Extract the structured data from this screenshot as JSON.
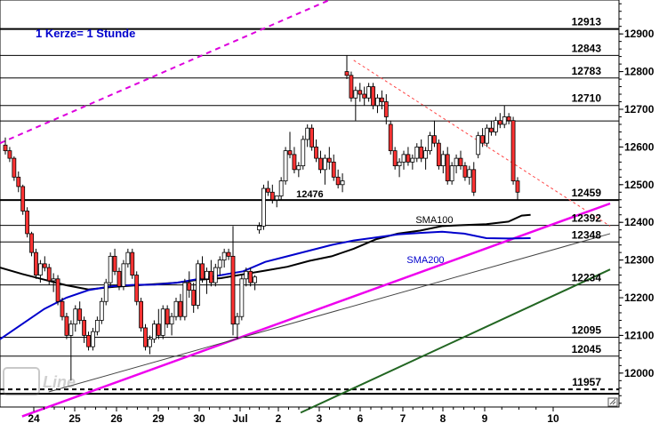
{
  "chart_data": {
    "type": "candlestick",
    "title": "1 Kerze= 1 Stunde",
    "title_color": "#0000cc",
    "ylim": [
      11910,
      12990
    ],
    "y_ticks": [
      12000,
      12100,
      12200,
      12300,
      12400,
      12500,
      12600,
      12700,
      12800,
      12900
    ],
    "x_tick_labels": [
      "24",
      "25",
      "26",
      "29",
      "30",
      "Jul",
      "2",
      "3",
      "6",
      "7",
      "8",
      "9",
      "10"
    ],
    "horizontal_levels": [
      {
        "value": 12913,
        "label": "12913",
        "style": "solid",
        "weight": "thick"
      },
      {
        "value": 12843,
        "label": "12843",
        "style": "solid",
        "weight": "thin"
      },
      {
        "value": 12783,
        "label": "12783",
        "style": "solid",
        "weight": "thin"
      },
      {
        "value": 12710,
        "label": "12710",
        "style": "solid",
        "weight": "thin"
      },
      {
        "value": 12669,
        "label": "",
        "style": "solid",
        "weight": "thin"
      },
      {
        "value": 12459,
        "label": "12459",
        "style": "solid",
        "weight": "thick"
      },
      {
        "value": 12392,
        "label": "12392",
        "style": "solid",
        "weight": "thin"
      },
      {
        "value": 12348,
        "label": "12348",
        "style": "solid",
        "weight": "thin"
      },
      {
        "value": 12234,
        "label": "12234",
        "style": "solid",
        "weight": "thin"
      },
      {
        "value": 12095,
        "label": "12095",
        "style": "solid",
        "weight": "thin"
      },
      {
        "value": 12045,
        "label": "12045",
        "style": "solid",
        "weight": "thin"
      },
      {
        "value": 11957,
        "label": "11957",
        "style": "dashed",
        "weight": "thick"
      },
      {
        "value": 11945,
        "label": "",
        "style": "solid",
        "weight": "thick"
      }
    ],
    "annotations": [
      {
        "text": "12476",
        "x": 6.7,
        "y": 12476
      },
      {
        "text": "SMA100",
        "x": 9.4,
        "y": 12407,
        "color": "#000000"
      },
      {
        "text": "SMA200",
        "x": 9.2,
        "y": 12301,
        "color": "#0000cc"
      }
    ],
    "trendlines": [
      {
        "name": "magenta-dashed-upper",
        "color": "#dd00dd",
        "style": "dashed",
        "points": [
          [
            0.0,
            12610
          ],
          [
            10.0,
            13120
          ]
        ]
      },
      {
        "name": "red-dashed-resistance",
        "color": "#ff4444",
        "style": "dashed",
        "points": [
          [
            8.0,
            12830
          ],
          [
            13.8,
            12390
          ]
        ]
      },
      {
        "name": "magenta-support",
        "color": "#ee00ee",
        "style": "solid",
        "points": [
          [
            0.5,
            11885
          ],
          [
            13.8,
            12450
          ]
        ]
      },
      {
        "name": "thin-channel",
        "color": "#444444",
        "style": "solid",
        "points": [
          [
            1.1,
            11950
          ],
          [
            13.8,
            12370
          ]
        ]
      },
      {
        "name": "green-support",
        "color": "#226622",
        "style": "solid",
        "points": [
          [
            6.8,
            11895
          ],
          [
            13.8,
            12275
          ]
        ]
      }
    ],
    "series": [
      {
        "name": "SMA100",
        "color": "#000000",
        "kind": "line",
        "points": [
          [
            0.0,
            12280
          ],
          [
            0.5,
            12263
          ],
          [
            1.0,
            12248
          ],
          [
            1.5,
            12233
          ],
          [
            2.0,
            12222
          ],
          [
            2.5,
            12228
          ],
          [
            3.0,
            12232
          ],
          [
            3.5,
            12236
          ],
          [
            4.0,
            12240
          ],
          [
            4.5,
            12248
          ],
          [
            5.0,
            12252
          ],
          [
            5.5,
            12262
          ],
          [
            6.0,
            12272
          ],
          [
            6.5,
            12282
          ],
          [
            7.0,
            12298
          ],
          [
            7.5,
            12310
          ],
          [
            8.0,
            12330
          ],
          [
            8.5,
            12355
          ],
          [
            9.0,
            12370
          ],
          [
            9.5,
            12378
          ],
          [
            10.0,
            12390
          ],
          [
            10.5,
            12393
          ],
          [
            11.0,
            12395
          ],
          [
            11.5,
            12402
          ],
          [
            11.8,
            12418
          ],
          [
            12.0,
            12420
          ]
        ]
      },
      {
        "name": "SMA200",
        "color": "#0000cc",
        "kind": "line",
        "points": [
          [
            0.0,
            12090
          ],
          [
            0.5,
            12130
          ],
          [
            1.0,
            12170
          ],
          [
            1.5,
            12200
          ],
          [
            2.0,
            12220
          ],
          [
            2.5,
            12230
          ],
          [
            3.0,
            12234
          ],
          [
            3.5,
            12235
          ],
          [
            4.0,
            12240
          ],
          [
            4.5,
            12250
          ],
          [
            5.0,
            12260
          ],
          [
            5.5,
            12270
          ],
          [
            6.0,
            12295
          ],
          [
            6.5,
            12310
          ],
          [
            7.0,
            12325
          ],
          [
            7.5,
            12340
          ],
          [
            8.0,
            12352
          ],
          [
            8.5,
            12360
          ],
          [
            9.0,
            12368
          ],
          [
            9.5,
            12372
          ],
          [
            10.0,
            12375
          ],
          [
            10.5,
            12370
          ],
          [
            11.0,
            12358
          ],
          [
            11.5,
            12357
          ],
          [
            12.0,
            12358
          ]
        ]
      },
      {
        "name": "price",
        "kind": "candles",
        "bull_color": "#ffffff",
        "bear_color": "#ff3333",
        "ohlc": [
          [
            12605,
            12625,
            12580,
            12590
          ],
          [
            12590,
            12600,
            12560,
            12570
          ],
          [
            12570,
            12575,
            12510,
            12520
          ],
          [
            12520,
            12535,
            12480,
            12495
          ],
          [
            12495,
            12500,
            12420,
            12430
          ],
          [
            12430,
            12440,
            12360,
            12370
          ],
          [
            12370,
            12375,
            12310,
            12320
          ],
          [
            12320,
            12330,
            12250,
            12260
          ],
          [
            12260,
            12300,
            12240,
            12290
          ],
          [
            12290,
            12310,
            12270,
            12280
          ],
          [
            12280,
            12290,
            12235,
            12245
          ],
          [
            12245,
            12265,
            12215,
            12250
          ],
          [
            12250,
            12260,
            12180,
            12190
          ],
          [
            12190,
            12200,
            12140,
            12150
          ],
          [
            12150,
            12160,
            12090,
            12100
          ],
          [
            12100,
            12140,
            11980,
            12130
          ],
          [
            12130,
            12180,
            12110,
            12170
          ],
          [
            12170,
            12190,
            12130,
            12140
          ],
          [
            12140,
            12150,
            12080,
            12100
          ],
          [
            12100,
            12110,
            12060,
            12070
          ],
          [
            12070,
            12120,
            12060,
            12110
          ],
          [
            12110,
            12150,
            12100,
            12140
          ],
          [
            12140,
            12200,
            12130,
            12190
          ],
          [
            12190,
            12250,
            12180,
            12240
          ],
          [
            12240,
            12320,
            12230,
            12310
          ],
          [
            12310,
            12330,
            12260,
            12270
          ],
          [
            12270,
            12280,
            12220,
            12230
          ],
          [
            12230,
            12300,
            12220,
            12290
          ],
          [
            12290,
            12330,
            12280,
            12320
          ],
          [
            12320,
            12330,
            12250,
            12260
          ],
          [
            12260,
            12270,
            12180,
            12190
          ],
          [
            12190,
            12200,
            12110,
            12120
          ],
          [
            12120,
            12130,
            12060,
            12070
          ],
          [
            12070,
            12100,
            12050,
            12090
          ],
          [
            12090,
            12140,
            12080,
            12130
          ],
          [
            12130,
            12170,
            12090,
            12100
          ],
          [
            12100,
            12180,
            12090,
            12170
          ],
          [
            12170,
            12180,
            12120,
            12130
          ],
          [
            12130,
            12160,
            12100,
            12150
          ],
          [
            12150,
            12200,
            12140,
            12190
          ],
          [
            12190,
            12210,
            12140,
            12150
          ],
          [
            12150,
            12250,
            12140,
            12240
          ],
          [
            12240,
            12270,
            12200,
            12220
          ],
          [
            12220,
            12240,
            12160,
            12180
          ],
          [
            12180,
            12300,
            12170,
            12290
          ],
          [
            12290,
            12310,
            12240,
            12250
          ],
          [
            12250,
            12280,
            12210,
            12270
          ],
          [
            12270,
            12300,
            12230,
            12240
          ],
          [
            12240,
            12290,
            12230,
            12280
          ],
          [
            12280,
            12310,
            12260,
            12300
          ],
          [
            12300,
            12330,
            12280,
            12320
          ],
          [
            12320,
            12330,
            12300,
            12310
          ],
          [
            12310,
            12390,
            12100,
            12130
          ],
          [
            12130,
            12160,
            12090,
            12150
          ],
          [
            12150,
            12260,
            12140,
            12250
          ],
          [
            12250,
            12280,
            12230,
            12270
          ],
          [
            12270,
            12280,
            12230,
            12240
          ],
          [
            12240,
            12260,
            12220,
            12255
          ],
          [
            12380,
            12400,
            12370,
            12390
          ],
          [
            12390,
            12500,
            12380,
            12490
          ],
          [
            12490,
            12510,
            12470,
            12480
          ],
          [
            12480,
            12500,
            12450,
            12460
          ],
          [
            12460,
            12470,
            12440,
            12470
          ],
          [
            12470,
            12520,
            12460,
            12510
          ],
          [
            12510,
            12600,
            12500,
            12590
          ],
          [
            12590,
            12640,
            12570,
            12580
          ],
          [
            12580,
            12600,
            12530,
            12540
          ],
          [
            12540,
            12560,
            12520,
            12550
          ],
          [
            12550,
            12630,
            12540,
            12620
          ],
          [
            12620,
            12660,
            12600,
            12650
          ],
          [
            12650,
            12660,
            12590,
            12600
          ],
          [
            12600,
            12620,
            12560,
            12570
          ],
          [
            12570,
            12590,
            12530,
            12540
          ],
          [
            12540,
            12580,
            12500,
            12570
          ],
          [
            12570,
            12600,
            12540,
            12560
          ],
          [
            12560,
            12580,
            12510,
            12520
          ],
          [
            12520,
            12540,
            12490,
            12500
          ],
          [
            12500,
            12530,
            12480,
            12510
          ],
          [
            12800,
            12843,
            12780,
            12790
          ],
          [
            12790,
            12800,
            12720,
            12730
          ],
          [
            12730,
            12760,
            12670,
            12750
          ],
          [
            12750,
            12770,
            12720,
            12740
          ],
          [
            12740,
            12760,
            12710,
            12730
          ],
          [
            12730,
            12770,
            12720,
            12760
          ],
          [
            12760,
            12770,
            12700,
            12710
          ],
          [
            12710,
            12740,
            12690,
            12730
          ],
          [
            12730,
            12750,
            12700,
            12720
          ],
          [
            12720,
            12740,
            12660,
            12680
          ],
          [
            12660,
            12670,
            12580,
            12590
          ],
          [
            12590,
            12600,
            12540,
            12550
          ],
          [
            12550,
            12570,
            12520,
            12560
          ],
          [
            12560,
            12590,
            12540,
            12580
          ],
          [
            12580,
            12600,
            12550,
            12560
          ],
          [
            12560,
            12580,
            12540,
            12570
          ],
          [
            12570,
            12610,
            12560,
            12600
          ],
          [
            12600,
            12620,
            12560,
            12570
          ],
          [
            12570,
            12600,
            12540,
            12590
          ],
          [
            12590,
            12640,
            12580,
            12630
          ],
          [
            12630,
            12670,
            12600,
            12610
          ],
          [
            12610,
            12620,
            12540,
            12550
          ],
          [
            12550,
            12590,
            12530,
            12580
          ],
          [
            12580,
            12600,
            12500,
            12510
          ],
          [
            12510,
            12560,
            12500,
            12550
          ],
          [
            12550,
            12580,
            12530,
            12570
          ],
          [
            12570,
            12590,
            12540,
            12550
          ],
          [
            12550,
            12560,
            12510,
            12520
          ],
          [
            12520,
            12550,
            12500,
            12540
          ],
          [
            12540,
            12560,
            12470,
            12480
          ],
          [
            12580,
            12640,
            12570,
            12630
          ],
          [
            12630,
            12650,
            12600,
            12610
          ],
          [
            12610,
            12660,
            12600,
            12650
          ],
          [
            12650,
            12670,
            12630,
            12640
          ],
          [
            12640,
            12680,
            12630,
            12670
          ],
          [
            12670,
            12690,
            12650,
            12660
          ],
          [
            12660,
            12710,
            12650,
            12680
          ],
          [
            12680,
            12690,
            12660,
            12670
          ],
          [
            12670,
            12680,
            12500,
            12510
          ],
          [
            12510,
            12520,
            12460,
            12480
          ]
        ]
      }
    ]
  }
}
